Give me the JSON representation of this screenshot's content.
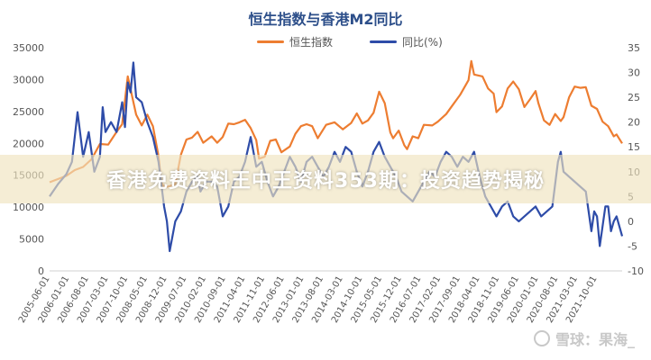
{
  "chart_data": {
    "type": "line",
    "title": "恒生指数与香港M2同比",
    "colors": {
      "hsi": "#ED7D31",
      "m2": "#2E4CA8"
    },
    "y_left": {
      "ticks": [
        0,
        5000,
        10000,
        15000,
        20000,
        25000,
        30000,
        35000
      ],
      "range": [
        0,
        35000
      ]
    },
    "y_right": {
      "ticks": [
        -10,
        -5,
        0,
        5,
        10,
        15,
        20,
        25,
        30,
        35
      ],
      "range": [
        -10,
        35
      ]
    },
    "x_range": [
      "2005-06",
      "2022-07"
    ],
    "x_ticks": [
      "2005-06-01",
      "2006-01-01",
      "2006-08-01",
      "2007-03-01",
      "2007-10-01",
      "2008-05-01",
      "2008-12-01",
      "2009-07-01",
      "2010-02-01",
      "2010-09-01",
      "2011-04-01",
      "2011-11-01",
      "2012-06-01",
      "2013-01-01",
      "2013-08-01",
      "2014-03-01",
      "2014-10-01",
      "2015-05-01",
      "2015-12-01",
      "2016-07-01",
      "2017-02-01",
      "2017-09-01",
      "2018-04-01",
      "2018-11-01",
      "2019-06-01",
      "2020-01-01",
      "2020-08-01",
      "2021-03-01",
      "2021-10-01"
    ],
    "series": [
      {
        "name": "恒生指数",
        "axis": "left",
        "points": [
          [
            "2005-06",
            13900
          ],
          [
            "2005-12",
            14900
          ],
          [
            "2006-03",
            15800
          ],
          [
            "2006-06",
            16300
          ],
          [
            "2006-09",
            17500
          ],
          [
            "2006-12",
            19900
          ],
          [
            "2007-03",
            19800
          ],
          [
            "2007-06",
            21800
          ],
          [
            "2007-08",
            23000
          ],
          [
            "2007-10",
            30500
          ],
          [
            "2007-11",
            28500
          ],
          [
            "2008-01",
            24500
          ],
          [
            "2008-03",
            22800
          ],
          [
            "2008-05",
            24500
          ],
          [
            "2008-07",
            22700
          ],
          [
            "2008-09",
            18000
          ],
          [
            "2008-10",
            13900
          ],
          [
            "2008-11",
            13100
          ],
          [
            "2009-01",
            13300
          ],
          [
            "2009-03",
            13600
          ],
          [
            "2009-05",
            18200
          ],
          [
            "2009-07",
            20600
          ],
          [
            "2009-09",
            20900
          ],
          [
            "2009-11",
            21800
          ],
          [
            "2010-01",
            20100
          ],
          [
            "2010-04",
            21100
          ],
          [
            "2010-06",
            20100
          ],
          [
            "2010-08",
            21000
          ],
          [
            "2010-10",
            23100
          ],
          [
            "2010-12",
            23000
          ],
          [
            "2011-02",
            23300
          ],
          [
            "2011-04",
            23700
          ],
          [
            "2011-06",
            22400
          ],
          [
            "2011-08",
            20500
          ],
          [
            "2011-09",
            17600
          ],
          [
            "2011-11",
            17900
          ],
          [
            "2012-01",
            20400
          ],
          [
            "2012-03",
            20600
          ],
          [
            "2012-05",
            18600
          ],
          [
            "2012-08",
            19500
          ],
          [
            "2012-10",
            21500
          ],
          [
            "2012-12",
            22700
          ],
          [
            "2013-02",
            23000
          ],
          [
            "2013-04",
            22700
          ],
          [
            "2013-06",
            20800
          ],
          [
            "2013-09",
            22900
          ],
          [
            "2013-12",
            23300
          ],
          [
            "2014-03",
            22200
          ],
          [
            "2014-06",
            23200
          ],
          [
            "2014-08",
            24700
          ],
          [
            "2014-10",
            23100
          ],
          [
            "2014-12",
            23600
          ],
          [
            "2015-02",
            24800
          ],
          [
            "2015-04",
            28100
          ],
          [
            "2015-06",
            26300
          ],
          [
            "2015-08",
            21700
          ],
          [
            "2015-09",
            20800
          ],
          [
            "2015-11",
            22000
          ],
          [
            "2016-01",
            19700
          ],
          [
            "2016-02",
            19100
          ],
          [
            "2016-04",
            21100
          ],
          [
            "2016-06",
            20800
          ],
          [
            "2016-08",
            22900
          ],
          [
            "2016-11",
            22800
          ],
          [
            "2017-01",
            23400
          ],
          [
            "2017-04",
            24600
          ],
          [
            "2017-06",
            25800
          ],
          [
            "2017-09",
            27600
          ],
          [
            "2017-12",
            29900
          ],
          [
            "2018-01",
            32900
          ],
          [
            "2018-02",
            30800
          ],
          [
            "2018-05",
            30500
          ],
          [
            "2018-07",
            28600
          ],
          [
            "2018-09",
            27800
          ],
          [
            "2018-10",
            24900
          ],
          [
            "2018-12",
            25800
          ],
          [
            "2019-02",
            28600
          ],
          [
            "2019-04",
            29700
          ],
          [
            "2019-06",
            28500
          ],
          [
            "2019-08",
            25700
          ],
          [
            "2019-10",
            26900
          ],
          [
            "2019-12",
            28200
          ],
          [
            "2020-01",
            26300
          ],
          [
            "2020-03",
            23600
          ],
          [
            "2020-05",
            22900
          ],
          [
            "2020-07",
            24600
          ],
          [
            "2020-09",
            23500
          ],
          [
            "2020-10",
            24100
          ],
          [
            "2020-12",
            27200
          ],
          [
            "2021-02",
            28900
          ],
          [
            "2021-04",
            28700
          ],
          [
            "2021-06",
            28800
          ],
          [
            "2021-08",
            25900
          ],
          [
            "2021-10",
            25400
          ],
          [
            "2021-12",
            23400
          ],
          [
            "2022-02",
            22700
          ],
          [
            "2022-03",
            21900
          ],
          [
            "2022-04",
            21100
          ],
          [
            "2022-05",
            21400
          ],
          [
            "2022-07",
            20000
          ]
        ]
      },
      {
        "name": "同比(%)",
        "axis": "right",
        "points": [
          [
            "2005-06",
            5
          ],
          [
            "2005-09",
            7.5
          ],
          [
            "2005-12",
            9.5
          ],
          [
            "2006-02",
            12
          ],
          [
            "2006-04",
            22
          ],
          [
            "2006-06",
            13
          ],
          [
            "2006-08",
            18
          ],
          [
            "2006-10",
            10
          ],
          [
            "2006-12",
            13
          ],
          [
            "2007-01",
            23
          ],
          [
            "2007-02",
            18
          ],
          [
            "2007-04",
            20
          ],
          [
            "2007-06",
            18
          ],
          [
            "2007-08",
            24
          ],
          [
            "2007-09",
            19
          ],
          [
            "2007-10",
            28
          ],
          [
            "2007-11",
            26
          ],
          [
            "2007-12",
            32
          ],
          [
            "2008-01",
            25
          ],
          [
            "2008-03",
            24
          ],
          [
            "2008-05",
            20
          ],
          [
            "2008-07",
            17
          ],
          [
            "2008-09",
            12
          ],
          [
            "2008-11",
            3
          ],
          [
            "2008-12",
            0
          ],
          [
            "2009-01",
            -6
          ],
          [
            "2009-03",
            0
          ],
          [
            "2009-05",
            2
          ],
          [
            "2009-07",
            6
          ],
          [
            "2009-09",
            8
          ],
          [
            "2009-11",
            9
          ],
          [
            "2009-12",
            6
          ],
          [
            "2010-02",
            8
          ],
          [
            "2010-04",
            8
          ],
          [
            "2010-06",
            7
          ],
          [
            "2010-08",
            1
          ],
          [
            "2010-10",
            3
          ],
          [
            "2010-12",
            8
          ],
          [
            "2011-02",
            9
          ],
          [
            "2011-04",
            12
          ],
          [
            "2011-06",
            17
          ],
          [
            "2011-08",
            11
          ],
          [
            "2011-10",
            12
          ],
          [
            "2011-12",
            8
          ],
          [
            "2012-02",
            5
          ],
          [
            "2012-04",
            7
          ],
          [
            "2012-06",
            10
          ],
          [
            "2012-08",
            13
          ],
          [
            "2012-10",
            11
          ],
          [
            "2012-12",
            8
          ],
          [
            "2013-02",
            12
          ],
          [
            "2013-04",
            13
          ],
          [
            "2013-06",
            11
          ],
          [
            "2013-08",
            9
          ],
          [
            "2013-10",
            11
          ],
          [
            "2013-12",
            14
          ],
          [
            "2014-02",
            12
          ],
          [
            "2014-04",
            15
          ],
          [
            "2014-06",
            14
          ],
          [
            "2014-08",
            10
          ],
          [
            "2014-10",
            7
          ],
          [
            "2014-12",
            10
          ],
          [
            "2015-02",
            14
          ],
          [
            "2015-04",
            16
          ],
          [
            "2015-06",
            13
          ],
          [
            "2015-08",
            11
          ],
          [
            "2015-10",
            9
          ],
          [
            "2015-12",
            6
          ],
          [
            "2016-02",
            5
          ],
          [
            "2016-04",
            4
          ],
          [
            "2016-06",
            6
          ],
          [
            "2016-08",
            8
          ],
          [
            "2016-10",
            10
          ],
          [
            "2016-12",
            9
          ],
          [
            "2017-02",
            12
          ],
          [
            "2017-04",
            14
          ],
          [
            "2017-06",
            13
          ],
          [
            "2017-08",
            11
          ],
          [
            "2017-10",
            13
          ],
          [
            "2017-12",
            12
          ],
          [
            "2018-02",
            14
          ],
          [
            "2018-04",
            9
          ],
          [
            "2018-06",
            5
          ],
          [
            "2018-08",
            3
          ],
          [
            "2018-10",
            1
          ],
          [
            "2018-12",
            3
          ],
          [
            "2019-02",
            4
          ],
          [
            "2019-04",
            1
          ],
          [
            "2019-06",
            0
          ],
          [
            "2019-08",
            1
          ],
          [
            "2019-10",
            2
          ],
          [
            "2019-12",
            3
          ],
          [
            "2020-02",
            1
          ],
          [
            "2020-04",
            2
          ],
          [
            "2020-06",
            3
          ],
          [
            "2020-08",
            12
          ],
          [
            "2020-09",
            14
          ],
          [
            "2020-10",
            10
          ],
          [
            "2020-12",
            9
          ],
          [
            "2021-02",
            8
          ],
          [
            "2021-04",
            7
          ],
          [
            "2021-06",
            6
          ],
          [
            "2021-08",
            -2
          ],
          [
            "2021-09",
            2
          ],
          [
            "2021-10",
            1
          ],
          [
            "2021-11",
            -5
          ],
          [
            "2021-12",
            -1
          ],
          [
            "2022-01",
            3
          ],
          [
            "2022-02",
            3
          ],
          [
            "2022-03",
            -2
          ],
          [
            "2022-04",
            0
          ],
          [
            "2022-05",
            1
          ],
          [
            "2022-07",
            -3
          ]
        ]
      }
    ]
  },
  "banner_text": "香港免费资料王中王资料353期：投资趋势揭秘",
  "watermark_text": "雪球：果海_"
}
